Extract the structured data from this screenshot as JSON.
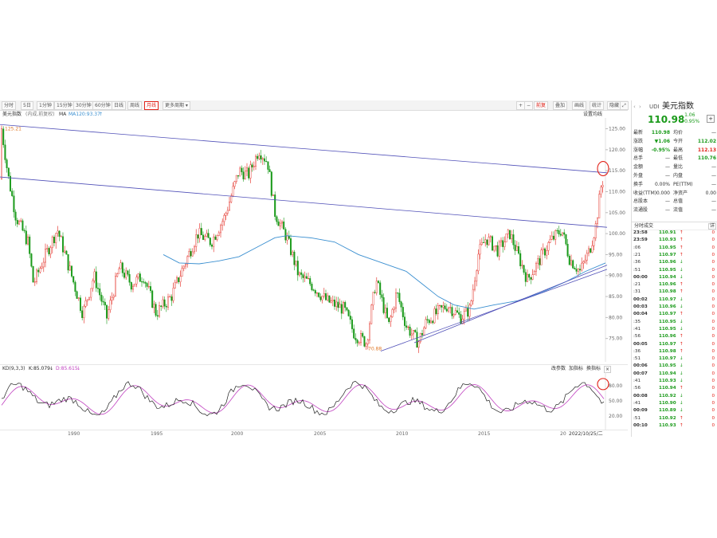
{
  "toolbar": {
    "tabs": [
      "分时",
      "5日",
      "1分钟",
      "15分钟",
      "30分钟",
      "60分钟",
      "日线",
      "周线",
      "月线",
      "更多周期"
    ],
    "active_tab": "月线",
    "right_buttons": [
      "+",
      "−",
      "前复",
      "叠加",
      "画线",
      "统计",
      "F",
      "L",
      "隐藏"
    ]
  },
  "infobar": {
    "name": "美元指数",
    "note": "(内成,前复权)",
    "ma_label": "MA",
    "ma_value": "MA120:93.37",
    "ma_arrow": "↑",
    "settings": "设置均线"
  },
  "main_chart": {
    "yaxis": [
      "125.00",
      "120.00",
      "115.00",
      "110.00",
      "105.00",
      "100.00",
      "95.00",
      "90.00",
      "85.00",
      "80.00",
      "75.00"
    ],
    "high_label": "125.21",
    "low_label": "70.88"
  },
  "kd": {
    "label": "KD(9,3,3)",
    "k": "K:85.079",
    "k_arrow": "↓",
    "d": "D:85.615",
    "d_arrow": "↓",
    "buttons": [
      "改参数",
      "加指标",
      "换指标"
    ],
    "yaxis": [
      "80.00",
      "50.00",
      "20.00"
    ]
  },
  "xaxis": {
    "labels": [
      "1990",
      "1995",
      "2000",
      "2005",
      "2010",
      "2015",
      "20"
    ],
    "cursor_date": "2022/10/25/二"
  },
  "quote": {
    "code": "UDI",
    "name": "美元指数",
    "price": "110.98",
    "change": "- 1.06",
    "change_pct": "- 0.95%",
    "plus": "+",
    "rows": [
      {
        "l1": "最新",
        "v1": "110.98",
        "c1": "dn",
        "l2": "均价",
        "v2": "—",
        "c2": ""
      },
      {
        "l1": "涨跌",
        "v1": "▼1.06",
        "c1": "dn",
        "l2": "今开",
        "v2": "112.02",
        "c2": "dn"
      },
      {
        "l1": "涨幅",
        "v1": "-0.95%",
        "c1": "dn",
        "l2": "最高",
        "v2": "112.13",
        "c2": "up"
      },
      {
        "l1": "总手",
        "v1": "—",
        "c1": "",
        "l2": "最低",
        "v2": "110.76",
        "c2": "dn"
      },
      {
        "l1": "金额",
        "v1": "—",
        "c1": "",
        "l2": "量比",
        "v2": "—",
        "c2": ""
      },
      {
        "l1": "外盘",
        "v1": "—",
        "c1": "",
        "l2": "内盘",
        "v2": "—",
        "c2": ""
      },
      {
        "l1": "换手",
        "v1": "0.00%",
        "c1": "",
        "l2": "PE(TTM)",
        "v2": "—",
        "c2": ""
      },
      {
        "l1": "收益(TTM)",
        "v1": "0.000",
        "c1": "",
        "l2": "净资产",
        "v2": "0.00",
        "c2": ""
      },
      {
        "l1": "总股本",
        "v1": "—",
        "c1": "",
        "l2": "总值",
        "v2": "—",
        "c2": ""
      },
      {
        "l1": "流通股",
        "v1": "—",
        "c1": "",
        "l2": "流值",
        "v2": "—",
        "c2": ""
      }
    ],
    "ticks_title": "分时成交",
    "ticks_btn": "详",
    "ticks": [
      {
        "t": "23:58",
        "p": "110.91",
        "a": "↑",
        "v": "0",
        "c": "dn",
        "b": true
      },
      {
        "t": "23:59",
        "p": "110.93",
        "a": "↑",
        "v": "0",
        "c": "dn",
        "b": true
      },
      {
        "t": ":06",
        "p": "110.95",
        "a": "↑",
        "v": "0",
        "c": "dn",
        "b": false
      },
      {
        "t": ":21",
        "p": "110.97",
        "a": "↑",
        "v": "0",
        "c": "dn",
        "b": false
      },
      {
        "t": ":36",
        "p": "110.96",
        "a": "↓",
        "v": "0",
        "c": "dn",
        "b": false
      },
      {
        "t": ":51",
        "p": "110.95",
        "a": "↓",
        "v": "0",
        "c": "dn",
        "b": false
      },
      {
        "t": "00:00",
        "p": "110.94",
        "a": "↓",
        "v": "0",
        "c": "dn",
        "b": true
      },
      {
        "t": ":21",
        "p": "110.96",
        "a": "↑",
        "v": "0",
        "c": "dn",
        "b": false
      },
      {
        "t": ":31",
        "p": "110.98",
        "a": "↑",
        "v": "0",
        "c": "dn",
        "b": false
      },
      {
        "t": "00:02",
        "p": "110.97",
        "a": "↓",
        "v": "0",
        "c": "dn",
        "b": true
      },
      {
        "t": "00:03",
        "p": "110.96",
        "a": "↓",
        "v": "0",
        "c": "dn",
        "b": true
      },
      {
        "t": "00:04",
        "p": "110.97",
        "a": "↑",
        "v": "0",
        "c": "dn",
        "b": true
      },
      {
        "t": ":35",
        "p": "110.95",
        "a": "↓",
        "v": "0",
        "c": "dn",
        "b": false
      },
      {
        "t": ":41",
        "p": "110.95",
        "a": "↓",
        "v": "0",
        "c": "dn",
        "b": false
      },
      {
        "t": ":56",
        "p": "110.96",
        "a": "↑",
        "v": "0",
        "c": "dn",
        "b": false
      },
      {
        "t": "00:05",
        "p": "110.97",
        "a": "↑",
        "v": "0",
        "c": "dn",
        "b": true
      },
      {
        "t": ":36",
        "p": "110.98",
        "a": "↑",
        "v": "0",
        "c": "dn",
        "b": false
      },
      {
        "t": ":51",
        "p": "110.97",
        "a": "↓",
        "v": "0",
        "c": "dn",
        "b": false
      },
      {
        "t": "00:06",
        "p": "110.95",
        "a": "↓",
        "v": "0",
        "c": "dn",
        "b": true
      },
      {
        "t": "00:07",
        "p": "110.94",
        "a": "↓",
        "v": "0",
        "c": "dn",
        "b": true
      },
      {
        "t": ":41",
        "p": "110.93",
        "a": "↓",
        "v": "0",
        "c": "dn",
        "b": false
      },
      {
        "t": ":56",
        "p": "110.94",
        "a": "↑",
        "v": "0",
        "c": "dn",
        "b": false
      },
      {
        "t": "00:08",
        "p": "110.92",
        "a": "↓",
        "v": "0",
        "c": "dn",
        "b": true
      },
      {
        "t": ":41",
        "p": "110.90",
        "a": "↓",
        "v": "0",
        "c": "dn",
        "b": false
      },
      {
        "t": "00:09",
        "p": "110.89",
        "a": "↓",
        "v": "0",
        "c": "dn",
        "b": true
      },
      {
        "t": ":51",
        "p": "110.92",
        "a": "↑",
        "v": "0",
        "c": "dn",
        "b": false
      },
      {
        "t": "00:10",
        "p": "110.93",
        "a": "↑",
        "v": "0",
        "c": "dn",
        "b": true
      }
    ]
  },
  "colors": {
    "up": "#e2231a",
    "down": "#1a9a1a",
    "ma": "#3a8fd0",
    "trend": "#5050b8",
    "k": "#222222",
    "d": "#c040c0"
  }
}
